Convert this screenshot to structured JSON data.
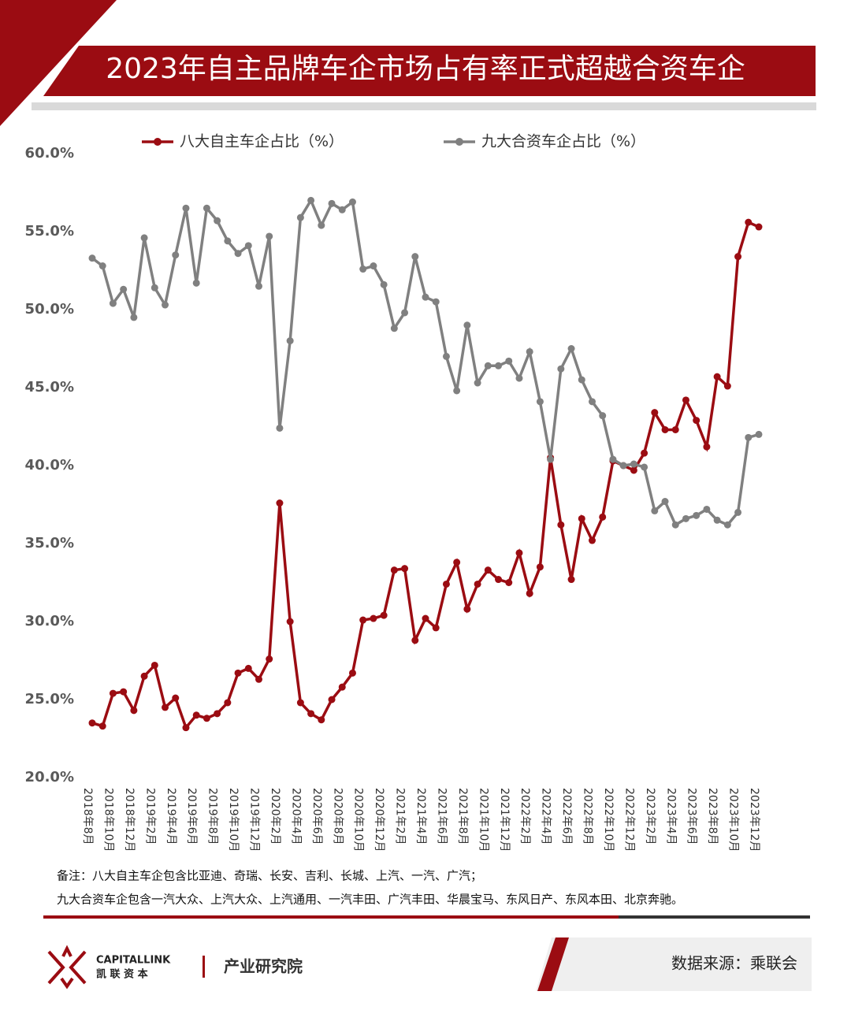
{
  "header": {
    "title": "2023年自主品牌车企市场占有率正式超越合资车企"
  },
  "chart_data": {
    "type": "line",
    "categories": [
      "2018年8月",
      null,
      "2018年10月",
      null,
      "2018年12月",
      null,
      "2019年2月",
      null,
      "2019年4月",
      null,
      "2019年6月",
      null,
      "2019年8月",
      null,
      "2019年10月",
      null,
      "2019年12月",
      null,
      "2020年2月",
      null,
      "2020年4月",
      null,
      "2020年6月",
      null,
      "2020年8月",
      null,
      "2020年10月",
      null,
      "2020年12月",
      null,
      "2021年2月",
      null,
      "2021年4月",
      null,
      "2021年6月",
      null,
      "2021年8月",
      null,
      "2021年10月",
      null,
      "2021年12月",
      null,
      "2022年2月",
      null,
      "2022年4月",
      null,
      "2022年6月",
      null,
      "2022年8月",
      null,
      "2022年10月",
      null,
      "2022年12月",
      null,
      "2023年2月",
      null,
      "2023年4月",
      null,
      "2023年6月",
      null,
      "2023年8月",
      null,
      "2023年10月",
      null,
      "2023年12月"
    ],
    "series": [
      {
        "name": "八大自主车企占比（%）",
        "color": "#9b0c12",
        "values": [
          23.5,
          23.3,
          25.4,
          25.5,
          24.3,
          26.5,
          27.2,
          24.5,
          25.1,
          23.2,
          24.0,
          23.8,
          24.1,
          24.8,
          26.7,
          27.0,
          26.3,
          27.6,
          37.6,
          30.0,
          24.8,
          24.1,
          23.7,
          25.0,
          25.8,
          26.7,
          30.1,
          30.2,
          30.4,
          33.3,
          33.4,
          28.8,
          30.2,
          29.6,
          32.4,
          33.8,
          30.8,
          32.4,
          33.3,
          32.7,
          32.5,
          34.4,
          31.8,
          33.5,
          40.5,
          36.2,
          32.7,
          36.6,
          35.2,
          36.7,
          40.3,
          40.0,
          39.7,
          40.8,
          43.4,
          42.3,
          42.3,
          44.2,
          42.9,
          41.2,
          45.7,
          45.1,
          53.4,
          55.6,
          55.3
        ]
      },
      {
        "name": "九大合资车企占比（%）",
        "color": "#808080",
        "values": [
          53.3,
          52.8,
          50.4,
          51.3,
          49.5,
          54.6,
          51.4,
          50.3,
          53.5,
          56.5,
          51.7,
          56.5,
          55.7,
          54.4,
          53.6,
          54.1,
          51.5,
          54.7,
          42.4,
          48.0,
          55.9,
          57.0,
          55.4,
          56.8,
          56.4,
          56.9,
          52.6,
          52.8,
          51.6,
          48.8,
          49.8,
          53.4,
          50.8,
          50.5,
          47.0,
          44.8,
          49.0,
          45.3,
          46.4,
          46.4,
          46.7,
          45.6,
          47.3,
          44.1,
          40.4,
          46.2,
          47.5,
          45.5,
          44.1,
          43.2,
          40.4,
          40.0,
          40.1,
          39.9,
          37.1,
          37.7,
          36.2,
          36.6,
          36.8,
          37.2,
          36.5,
          36.2,
          37.0,
          41.8,
          42.0
        ]
      }
    ],
    "ylim": [
      20,
      60
    ],
    "yticks": [
      {
        "value": 20,
        "label": "20.0%"
      },
      {
        "value": 25,
        "label": "25.0%"
      },
      {
        "value": 30,
        "label": "30.0%"
      },
      {
        "value": 35,
        "label": "35.0%"
      },
      {
        "value": 40,
        "label": "40.0%"
      },
      {
        "value": 45,
        "label": "45.0%"
      },
      {
        "value": 50,
        "label": "50.0%"
      },
      {
        "value": 55,
        "label": "55.0%"
      },
      {
        "value": 60,
        "label": "60.0%"
      }
    ]
  },
  "notes": [
    "备注：八大自主车企包含比亚迪、奇瑞、长安、吉利、长城、上汽、一汽、广汽；",
    "九大合资车企包含一汽大众、上汽大众、上汽通用、一汽丰田、广汽丰田、华晨宝马、东风日产、东风本田、北京奔驰。"
  ],
  "footer": {
    "brand": "CAPITALLINK",
    "brand_cn": "凯 联 资 本",
    "institute": "产业研究院",
    "source": "数据来源：乘联会"
  }
}
